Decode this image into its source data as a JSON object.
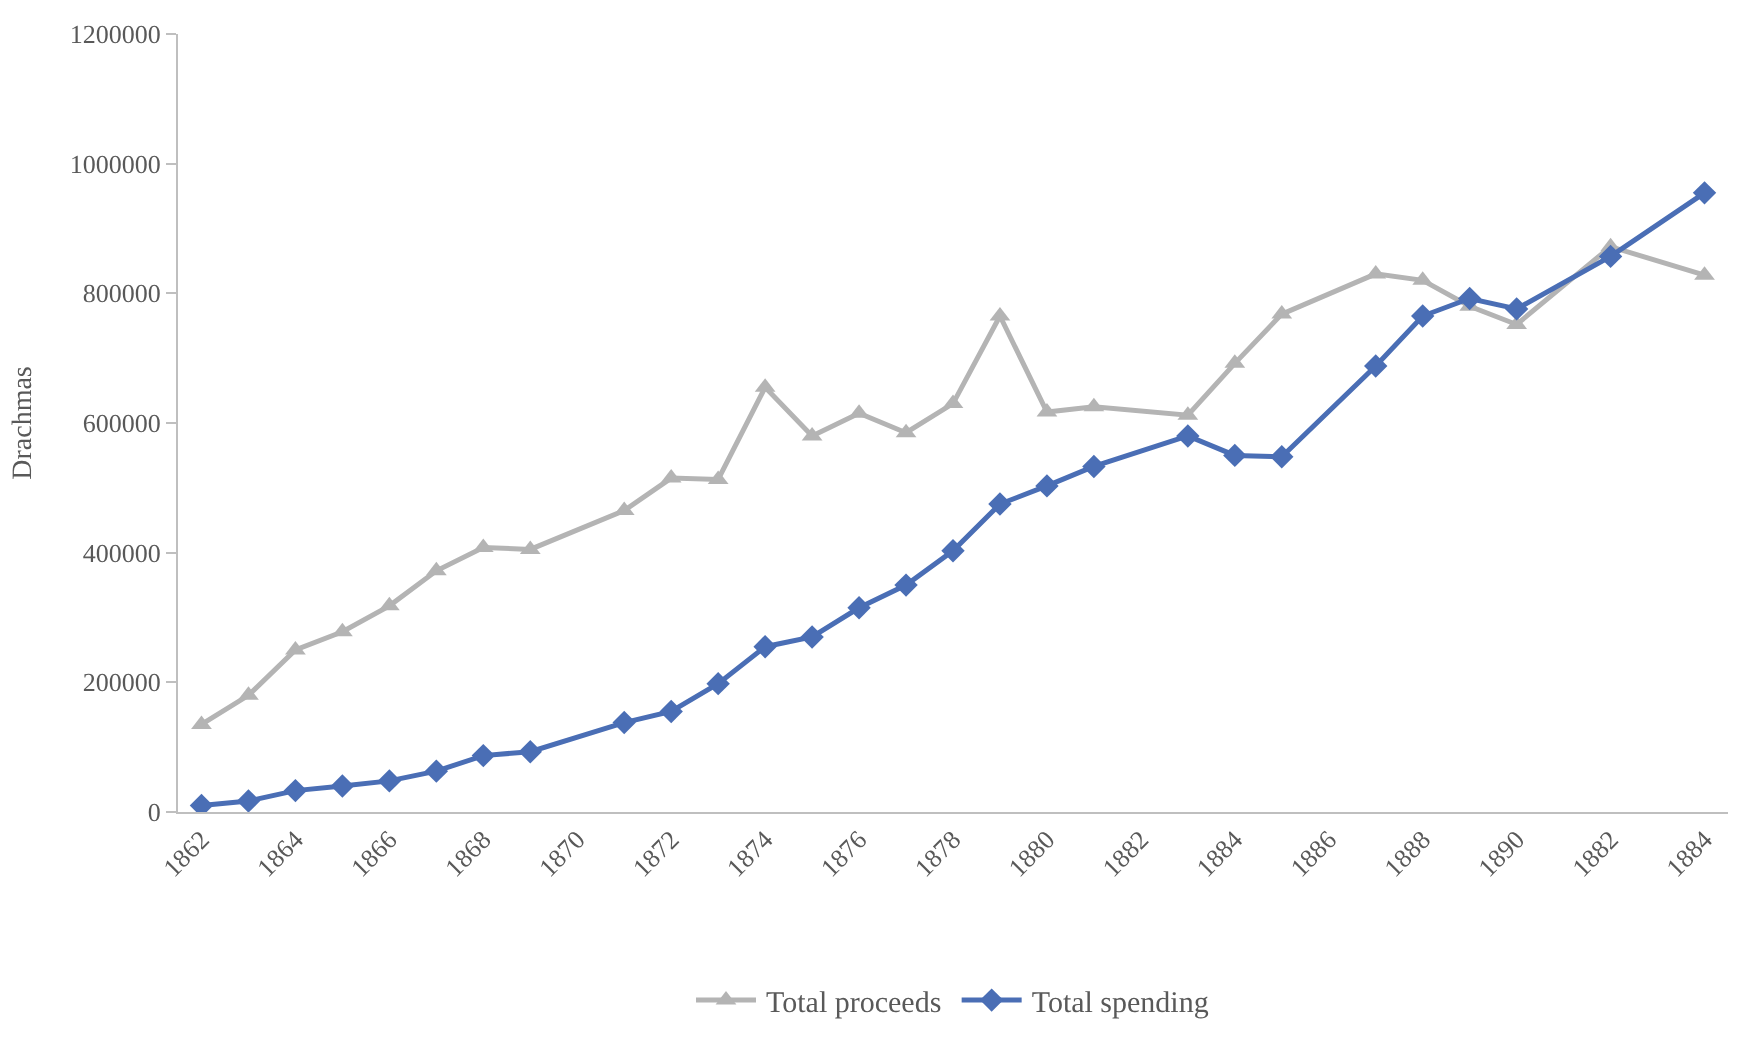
{
  "chart_data": {
    "type": "line",
    "ylabel": "Drachmas",
    "categories": [
      "1862",
      null,
      "1864",
      null,
      "1866",
      null,
      "1868",
      null,
      "1870",
      null,
      "1872",
      null,
      "1874",
      null,
      "1876",
      null,
      "1878",
      null,
      "1880",
      null,
      "1882",
      null,
      "1884",
      null,
      "1886",
      null,
      "1888",
      null,
      "1890",
      null,
      "1882",
      null,
      "1884"
    ],
    "series": [
      {
        "name": "Total proceeds",
        "color": "#b4b4b4",
        "marker": "triangle",
        "values": [
          135000,
          180000,
          250000,
          278000,
          318000,
          372000,
          408000,
          405000,
          null,
          465000,
          515000,
          513000,
          655000,
          580000,
          615000,
          585000,
          630000,
          765000,
          617000,
          625000,
          null,
          612000,
          692000,
          768000,
          null,
          830000,
          820000,
          780000,
          752000,
          null,
          872000,
          null,
          828000
        ]
      },
      {
        "name": "Total spending",
        "color": "#4a6eb5",
        "marker": "diamond",
        "values": [
          10000,
          17000,
          33000,
          40000,
          48000,
          63000,
          87000,
          93000,
          null,
          138000,
          155000,
          198000,
          255000,
          270000,
          315000,
          350000,
          403000,
          475000,
          503000,
          533000,
          null,
          580000,
          550000,
          548000,
          null,
          688000,
          765000,
          792000,
          776000,
          null,
          857000,
          null,
          955000
        ]
      }
    ],
    "ylim": [
      0,
      1200000
    ],
    "yticks": [
      0,
      200000,
      400000,
      600000,
      800000,
      1000000,
      1200000
    ],
    "legend": "bottom",
    "line_style": "solid"
  }
}
